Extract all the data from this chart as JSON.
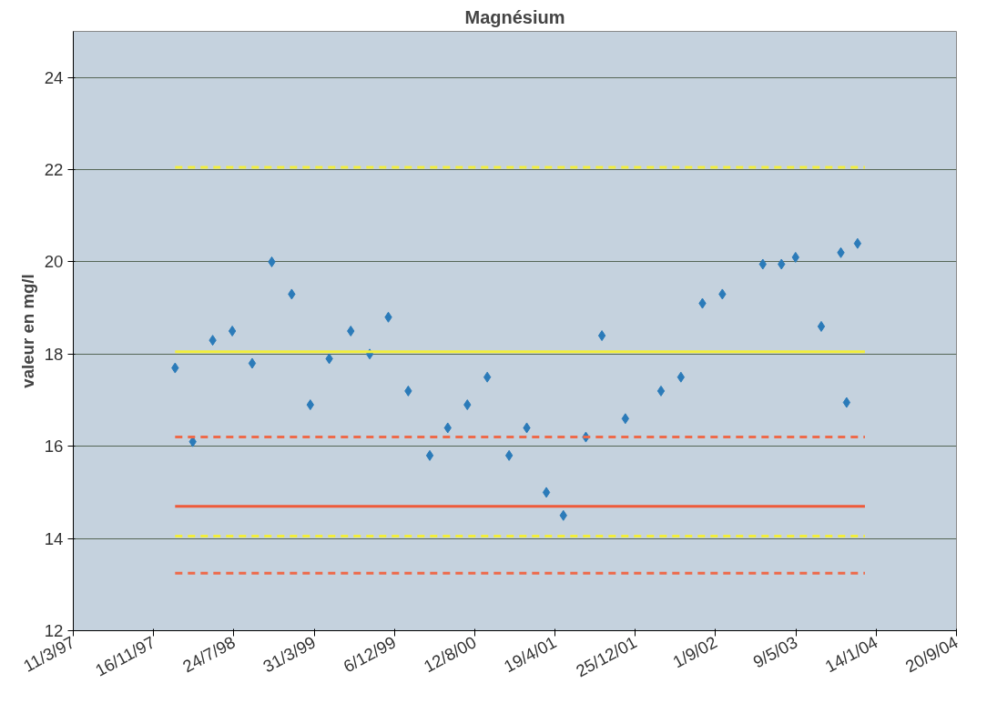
{
  "chart_data": {
    "type": "scatter",
    "title": "Magnésium",
    "ylabel": "valeur en mg/l",
    "series": [
      {
        "color": "#2b7bb9",
        "marker": "diamond",
        "x": [
          "1998-01-22",
          "1998-03-18",
          "1998-05-19",
          "1998-07-19",
          "1998-09-19",
          "1998-11-19",
          "1999-01-20",
          "1999-03-19",
          "1999-05-17",
          "1999-07-23",
          "1999-09-20",
          "1999-11-17",
          "2000-01-18",
          "2000-03-25",
          "2000-05-20",
          "2000-07-20",
          "2000-09-20",
          "2000-11-27",
          "2001-01-21",
          "2001-03-23",
          "2001-05-15",
          "2001-07-24",
          "2001-09-12",
          "2001-11-24",
          "2002-03-15",
          "2002-05-16",
          "2002-07-22",
          "2002-09-22",
          "2003-01-26",
          "2003-03-25",
          "2003-05-08",
          "2003-07-27",
          "2003-09-26",
          "2003-10-14",
          "2003-11-17"
        ],
        "values": [
          17.7,
          16.1,
          18.3,
          18.5,
          17.8,
          20.0,
          19.3,
          16.9,
          17.9,
          18.5,
          18.0,
          18.8,
          17.2,
          15.8,
          16.4,
          16.9,
          17.5,
          15.8,
          16.4,
          15.0,
          14.5,
          16.2,
          18.4,
          16.6,
          17.2,
          17.5,
          19.1,
          19.3,
          19.95,
          19.95,
          20.1,
          18.6,
          20.2,
          16.95,
          20.4
        ]
      },
      {
        "type": "line",
        "color": "#f2ee3a",
        "line_style": "dashed",
        "x": [
          "1998-01-22",
          "2003-12-10"
        ],
        "values": [
          22.05,
          22.05
        ]
      },
      {
        "type": "line",
        "color": "#f2ee3a",
        "line_style": "solid",
        "x": [
          "1998-01-22",
          "2003-12-10"
        ],
        "values": [
          18.05,
          18.05
        ]
      },
      {
        "type": "line",
        "color": "#ee6a4a",
        "line_style": "dashed",
        "x": [
          "1998-01-22",
          "2003-12-10"
        ],
        "values": [
          16.2,
          16.2
        ]
      },
      {
        "type": "line",
        "color": "#ee5a3a",
        "line_style": "solid",
        "x": [
          "1998-01-22",
          "2003-12-10"
        ],
        "values": [
          14.7,
          14.7
        ]
      },
      {
        "type": "line",
        "color": "#f2ee3a",
        "line_style": "dashed",
        "x": [
          "1998-01-22",
          "2003-12-10"
        ],
        "values": [
          14.05,
          14.05
        ]
      },
      {
        "type": "line",
        "color": "#ee6a4a",
        "line_style": "dashed",
        "x": [
          "1998-01-22",
          "2003-12-10"
        ],
        "values": [
          13.25,
          13.25
        ]
      }
    ],
    "xlim": [
      "1997-03-11",
      "2004-09-20"
    ],
    "xticks": [
      {
        "value": "1997-03-11",
        "label": "11/3/97"
      },
      {
        "value": "1997-11-16",
        "label": "16/11/97"
      },
      {
        "value": "1998-07-24",
        "label": "24/7/98"
      },
      {
        "value": "1999-03-31",
        "label": "31/3/99"
      },
      {
        "value": "1999-12-06",
        "label": "6/12/99"
      },
      {
        "value": "2000-08-12",
        "label": "12/8/00"
      },
      {
        "value": "2001-04-19",
        "label": "19/4/01"
      },
      {
        "value": "2001-12-25",
        "label": "25/12/01"
      },
      {
        "value": "2002-09-01",
        "label": "1/9/02"
      },
      {
        "value": "2003-05-09",
        "label": "9/5/03"
      },
      {
        "value": "2004-01-14",
        "label": "14/1/04"
      },
      {
        "value": "2004-09-20",
        "label": "20/9/04"
      }
    ],
    "ylim": [
      12,
      25
    ],
    "yticks": [
      12,
      14,
      16,
      18,
      20,
      22,
      24
    ],
    "grid": "y"
  }
}
